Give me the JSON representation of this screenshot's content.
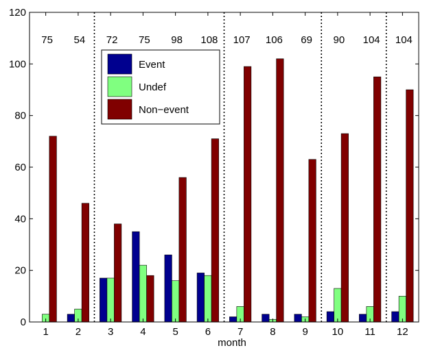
{
  "chart_data": {
    "type": "bar",
    "categories": [
      "1",
      "2",
      "3",
      "4",
      "5",
      "6",
      "7",
      "8",
      "9",
      "10",
      "11",
      "12"
    ],
    "series": [
      {
        "name": "Event",
        "color": "#00008f",
        "values": [
          0,
          3,
          17,
          35,
          26,
          19,
          2,
          3,
          3,
          4,
          3,
          4
        ]
      },
      {
        "name": "Undef",
        "color": "#80ff80",
        "values": [
          3,
          5,
          17,
          22,
          16,
          18,
          6,
          1,
          2,
          13,
          6,
          10
        ]
      },
      {
        "name": "Non−event",
        "color": "#800000",
        "values": [
          72,
          46,
          38,
          18,
          56,
          71,
          99,
          102,
          63,
          73,
          95,
          90
        ]
      }
    ],
    "totals": [
      "75",
      "54",
      "72",
      "75",
      "98",
      "108",
      "107",
      "106",
      "69",
      "90",
      "104",
      "104"
    ],
    "season_dividers_after": [
      "2",
      "6",
      "9",
      "11"
    ],
    "xlabel": "month",
    "ylabel": "",
    "ylim": [
      0,
      120
    ],
    "yticks": [
      "0",
      "20",
      "40",
      "60",
      "80",
      "100",
      "120"
    ],
    "legend_position": "top-left inside",
    "grid": false
  }
}
